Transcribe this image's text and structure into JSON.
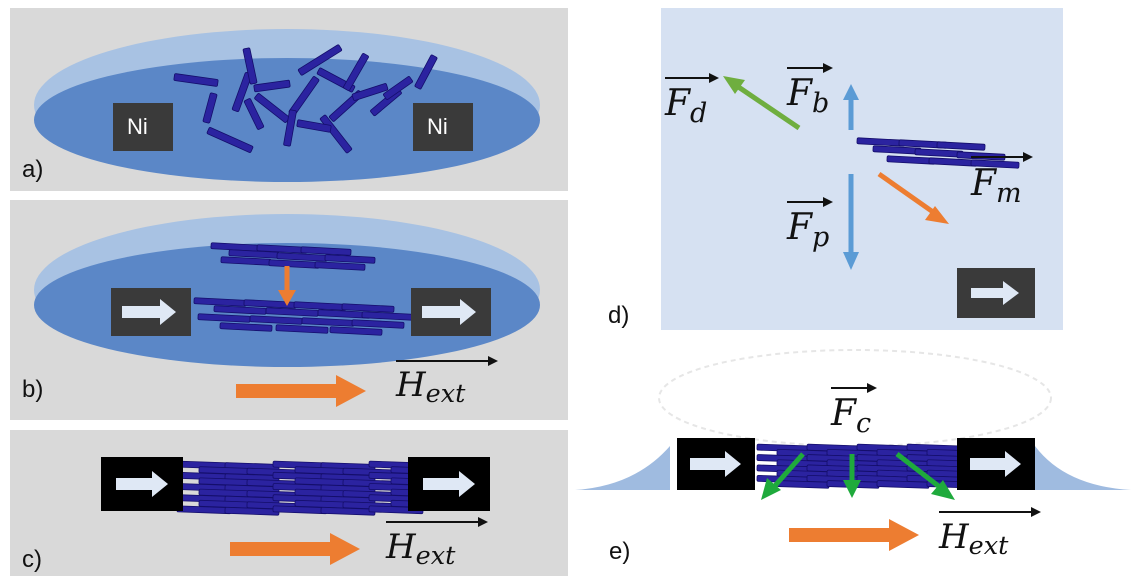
{
  "panels": {
    "a": {
      "label": "a)",
      "electrode_left": "Ni",
      "electrode_right": "Ni"
    },
    "b": {
      "label": "b)",
      "field_symbol": "H",
      "field_subscript": "ext"
    },
    "c": {
      "label": "c)",
      "field_symbol": "H",
      "field_subscript": "ext"
    },
    "d": {
      "label": "d)",
      "forces": [
        {
          "id": "drag",
          "symbol": "F",
          "subscript": "d",
          "color": "#6fae3f"
        },
        {
          "id": "buoyancy",
          "symbol": "F",
          "subscript": "b",
          "color": "#5b9bd5"
        },
        {
          "id": "magnetic",
          "symbol": "F",
          "subscript": "m",
          "color": "#ed7d31"
        },
        {
          "id": "gravity",
          "symbol": "F",
          "subscript": "p",
          "color": "#5b9bd5"
        }
      ]
    },
    "e": {
      "label": "e)",
      "force_symbol": "F",
      "force_subscript": "c",
      "field_symbol": "H",
      "field_subscript": "ext"
    }
  },
  "colors": {
    "panel_bg": "#d9d9d9",
    "panel_d_bg": "#d6e1f2",
    "drop_light": "#a8c2e3",
    "drop_dark": "#5b87c7",
    "nanowire": "#2b23a0",
    "nanowire_edge": "#140e6b",
    "electrode": "#3a3a3a",
    "magnet": "#000000",
    "arrow_white": "#dfe8f5",
    "orange": "#ed7d31",
    "green": "#1faa3c"
  }
}
